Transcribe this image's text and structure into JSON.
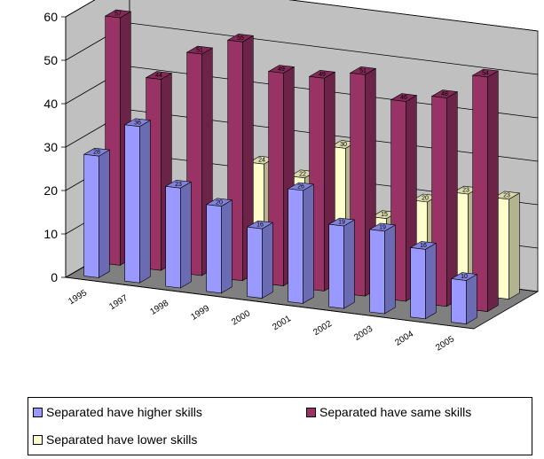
{
  "chart_data": {
    "type": "bar",
    "categories": [
      "1995",
      "1997",
      "1998",
      "1999",
      "2000",
      "2001",
      "2002",
      "2003",
      "2004",
      "2005"
    ],
    "series": [
      {
        "name": "Separated have higher skills",
        "color": "#9999ff",
        "values": [
          28,
          36,
          23,
          20,
          16,
          26,
          19,
          19,
          16,
          10
        ]
      },
      {
        "name": "Separated have same skills",
        "color": "#993366",
        "values": [
          57,
          44,
          51,
          55,
          49,
          49,
          51,
          46,
          48,
          54
        ]
      },
      {
        "name": "Separated have lower skills",
        "color": "#ffffcc",
        "values": [
          null,
          null,
          null,
          24,
          22,
          30,
          15,
          20,
          23,
          23
        ]
      }
    ],
    "y_ticks": [
      "0",
      "10",
      "20",
      "30",
      "40",
      "50",
      "60"
    ],
    "ylim": [
      0,
      60
    ],
    "grid": true,
    "legend_position": "bottom"
  }
}
